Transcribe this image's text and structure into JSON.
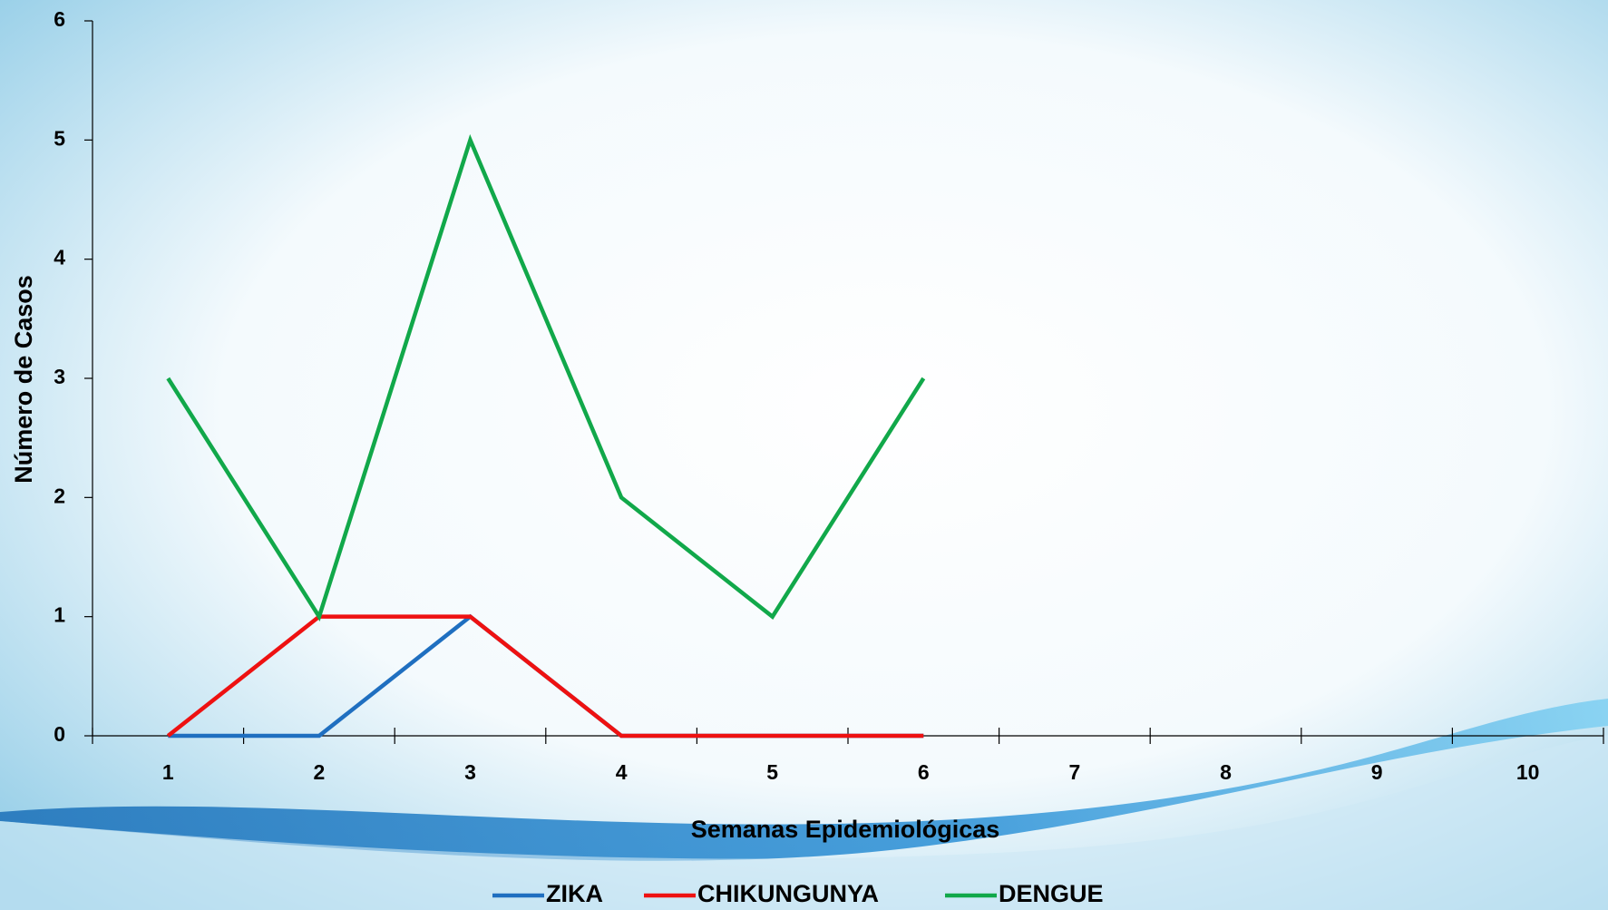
{
  "chart_data": {
    "type": "line",
    "x_label": "Semanas Epidemiológicas",
    "y_label": "Número de Casos",
    "categories": [
      "1",
      "2",
      "3",
      "4",
      "5",
      "6",
      "7",
      "8",
      "9",
      "10"
    ],
    "series": [
      {
        "name": "ZIKA",
        "color": "#1f6fc0",
        "values": [
          0,
          0,
          1,
          0,
          0,
          0,
          null,
          null,
          null,
          null
        ]
      },
      {
        "name": "CHIKUNGUNYA",
        "color": "#ee1111",
        "values": [
          0,
          1,
          1,
          0,
          0,
          0,
          null,
          null,
          null,
          null
        ]
      },
      {
        "name": "DENGUE",
        "color": "#11a84a",
        "values": [
          3,
          1,
          5,
          2,
          1,
          3,
          null,
          null,
          null,
          null
        ]
      }
    ],
    "ylim": [
      0,
      6
    ],
    "yticks": [
      0,
      1,
      2,
      3,
      4,
      5,
      6
    ]
  }
}
